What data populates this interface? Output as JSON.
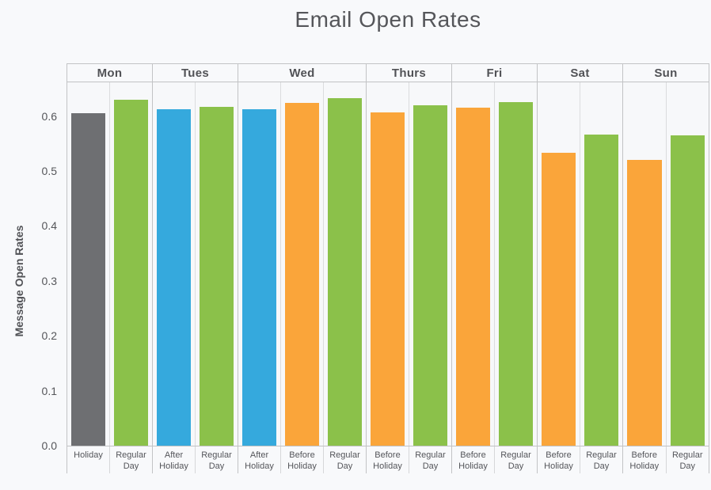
{
  "page": {
    "background": "#f8f9fb"
  },
  "chart_data": {
    "type": "bar",
    "title": "Email Open Rates",
    "ylabel": "Message Open Rates",
    "xlabel": "",
    "ylim": [
      0,
      0.66
    ],
    "yticks": [
      0.0,
      0.1,
      0.2,
      0.3,
      0.4,
      0.5,
      0.6
    ],
    "grid": false,
    "legend": "none",
    "colors": {
      "Holiday": "#6e6f72",
      "Regular Day": "#8bc14a",
      "After Holiday": "#35a9dd",
      "Before Holiday": "#faa53a"
    },
    "groups": [
      {
        "day": "Mon",
        "bars": [
          {
            "label": "Holiday",
            "value": 0.605
          },
          {
            "label": "Regular Day",
            "value": 0.629
          }
        ]
      },
      {
        "day": "Tues",
        "bars": [
          {
            "label": "After Holiday",
            "value": 0.612
          },
          {
            "label": "Regular Day",
            "value": 0.616
          }
        ]
      },
      {
        "day": "Wed",
        "bars": [
          {
            "label": "After Holiday",
            "value": 0.612
          },
          {
            "label": "Before Holiday",
            "value": 0.624
          },
          {
            "label": "Regular Day",
            "value": 0.632
          }
        ]
      },
      {
        "day": "Thurs",
        "bars": [
          {
            "label": "Before Holiday",
            "value": 0.606
          },
          {
            "label": "Regular Day",
            "value": 0.62
          }
        ]
      },
      {
        "day": "Fri",
        "bars": [
          {
            "label": "Before Holiday",
            "value": 0.615
          },
          {
            "label": "Regular Day",
            "value": 0.625
          }
        ]
      },
      {
        "day": "Sat",
        "bars": [
          {
            "label": "Before Holiday",
            "value": 0.533
          },
          {
            "label": "Regular Day",
            "value": 0.566
          }
        ]
      },
      {
        "day": "Sun",
        "bars": [
          {
            "label": "Before Holiday",
            "value": 0.52
          },
          {
            "label": "Regular Day",
            "value": 0.565
          }
        ]
      }
    ]
  }
}
